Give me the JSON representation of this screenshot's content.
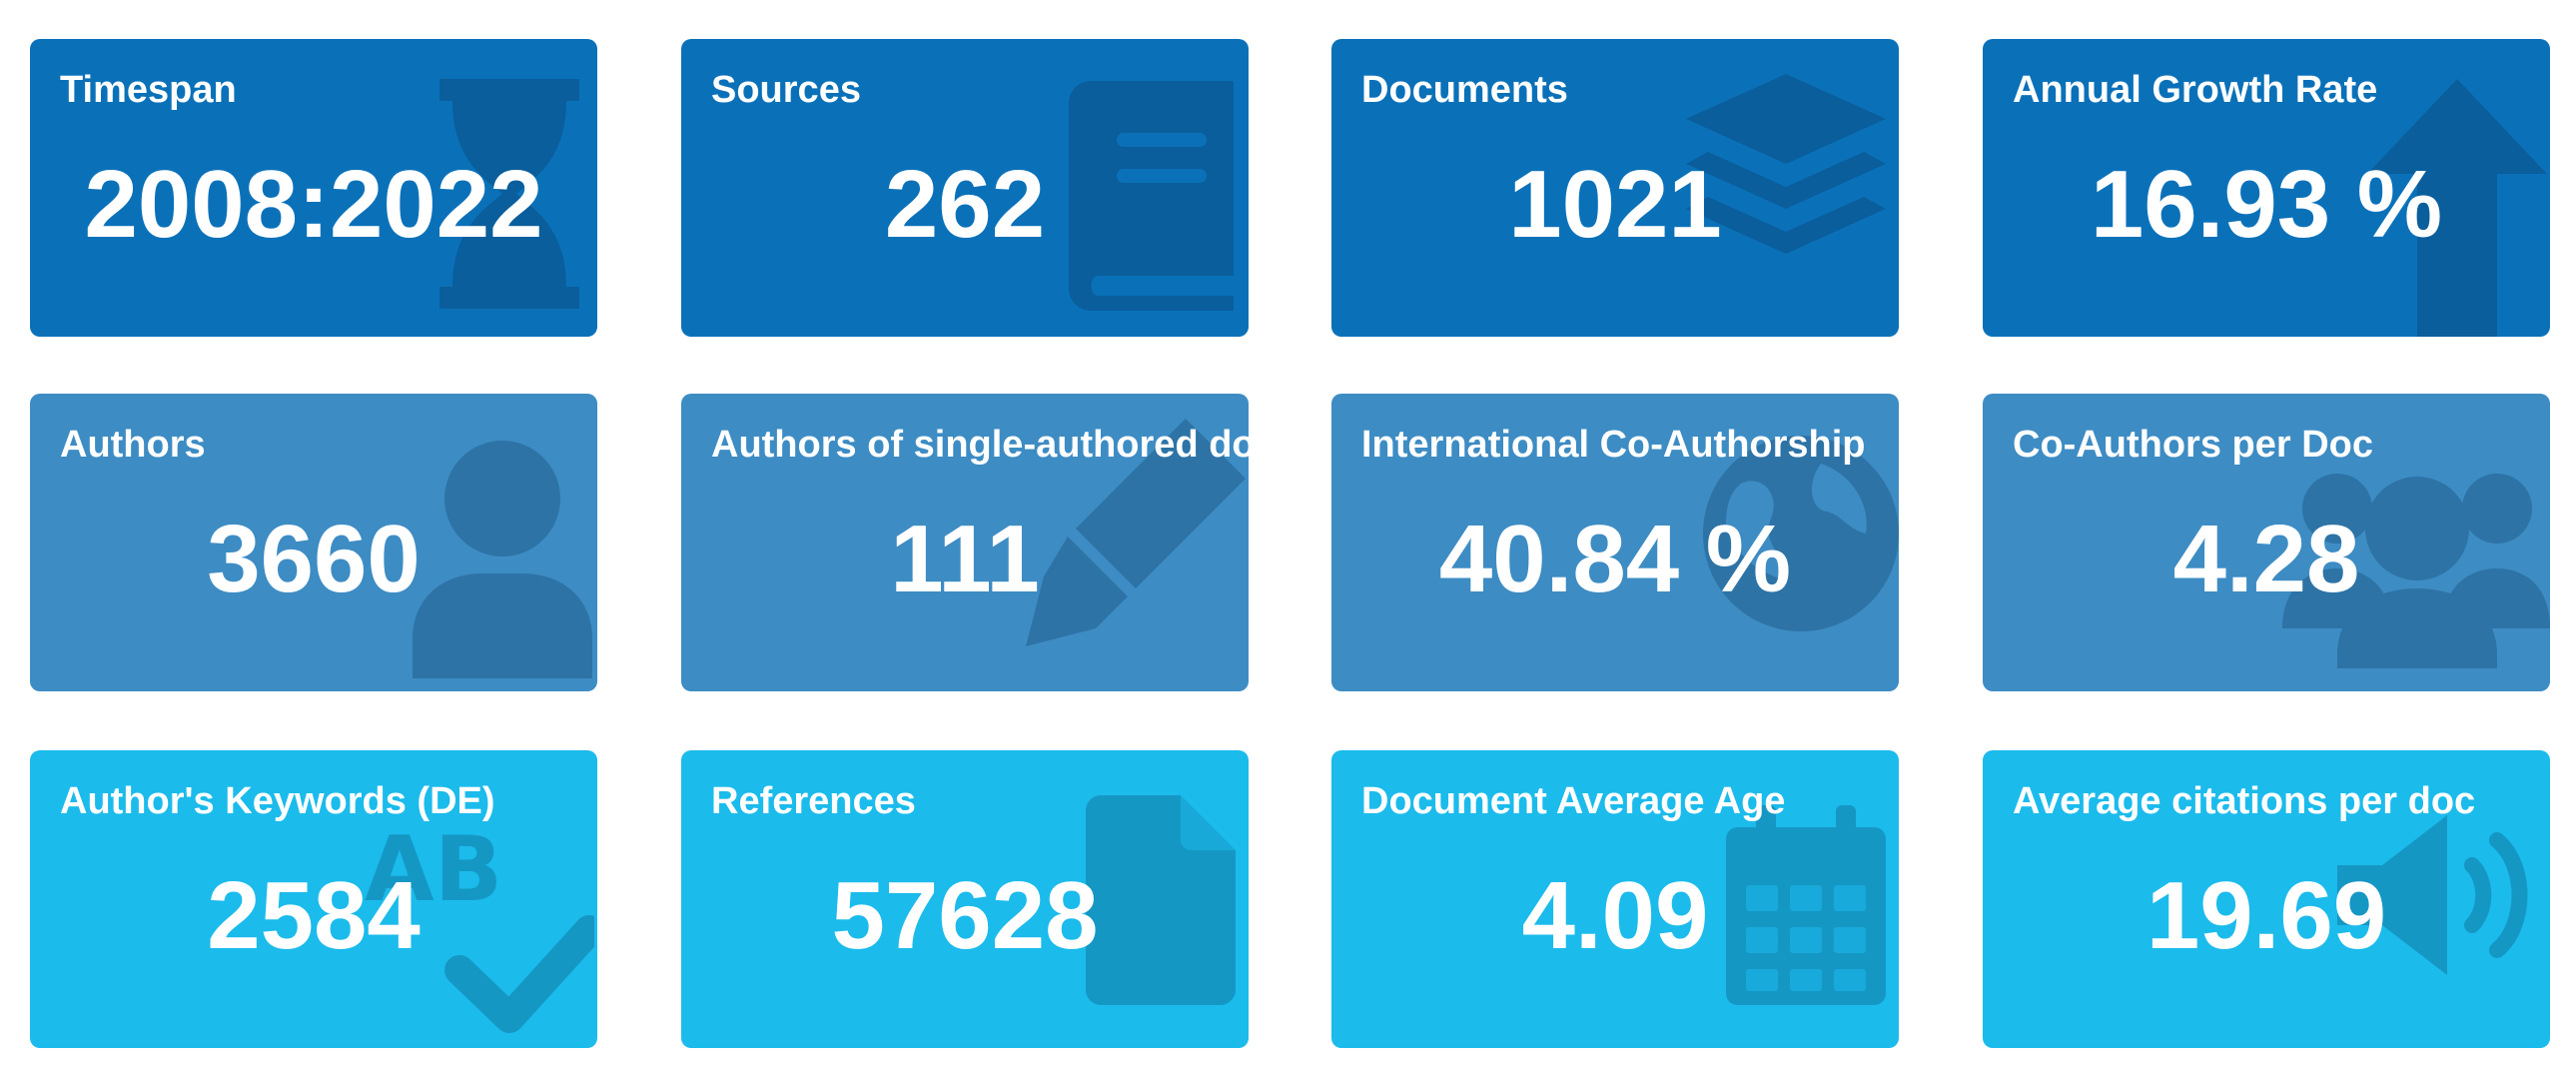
{
  "cards": [
    {
      "label": "Timespan",
      "value": "2008:2022",
      "icon": "hourglass-icon"
    },
    {
      "label": "Sources",
      "value": "262",
      "icon": "book-icon"
    },
    {
      "label": "Documents",
      "value": "1021",
      "icon": "layers-icon"
    },
    {
      "label": "Annual Growth Rate",
      "value": "16.93 %",
      "icon": "arrow-up-icon"
    },
    {
      "label": "Authors",
      "value": "3660",
      "icon": "user-icon"
    },
    {
      "label": "Authors of single-authored docs",
      "value": "111",
      "icon": "pen-icon"
    },
    {
      "label": "International Co-Authorship",
      "value": "40.84 %",
      "icon": "globe-icon"
    },
    {
      "label": "Co-Authors per Doc",
      "value": "4.28",
      "icon": "users-icon"
    },
    {
      "label": "Author's Keywords (DE)",
      "value": "2584",
      "icon": "spell-check-icon"
    },
    {
      "label": "References",
      "value": "57628",
      "icon": "file-icon"
    },
    {
      "label": "Document Average Age",
      "value": "4.09",
      "icon": "calendar-icon"
    },
    {
      "label": "Average citations per doc",
      "value": "19.69",
      "icon": "volume-icon"
    }
  ],
  "colors": {
    "row1": "#0a71b9",
    "row2": "#3d8cc4",
    "row3": "#1bbbec",
    "text": "#ffffff"
  }
}
